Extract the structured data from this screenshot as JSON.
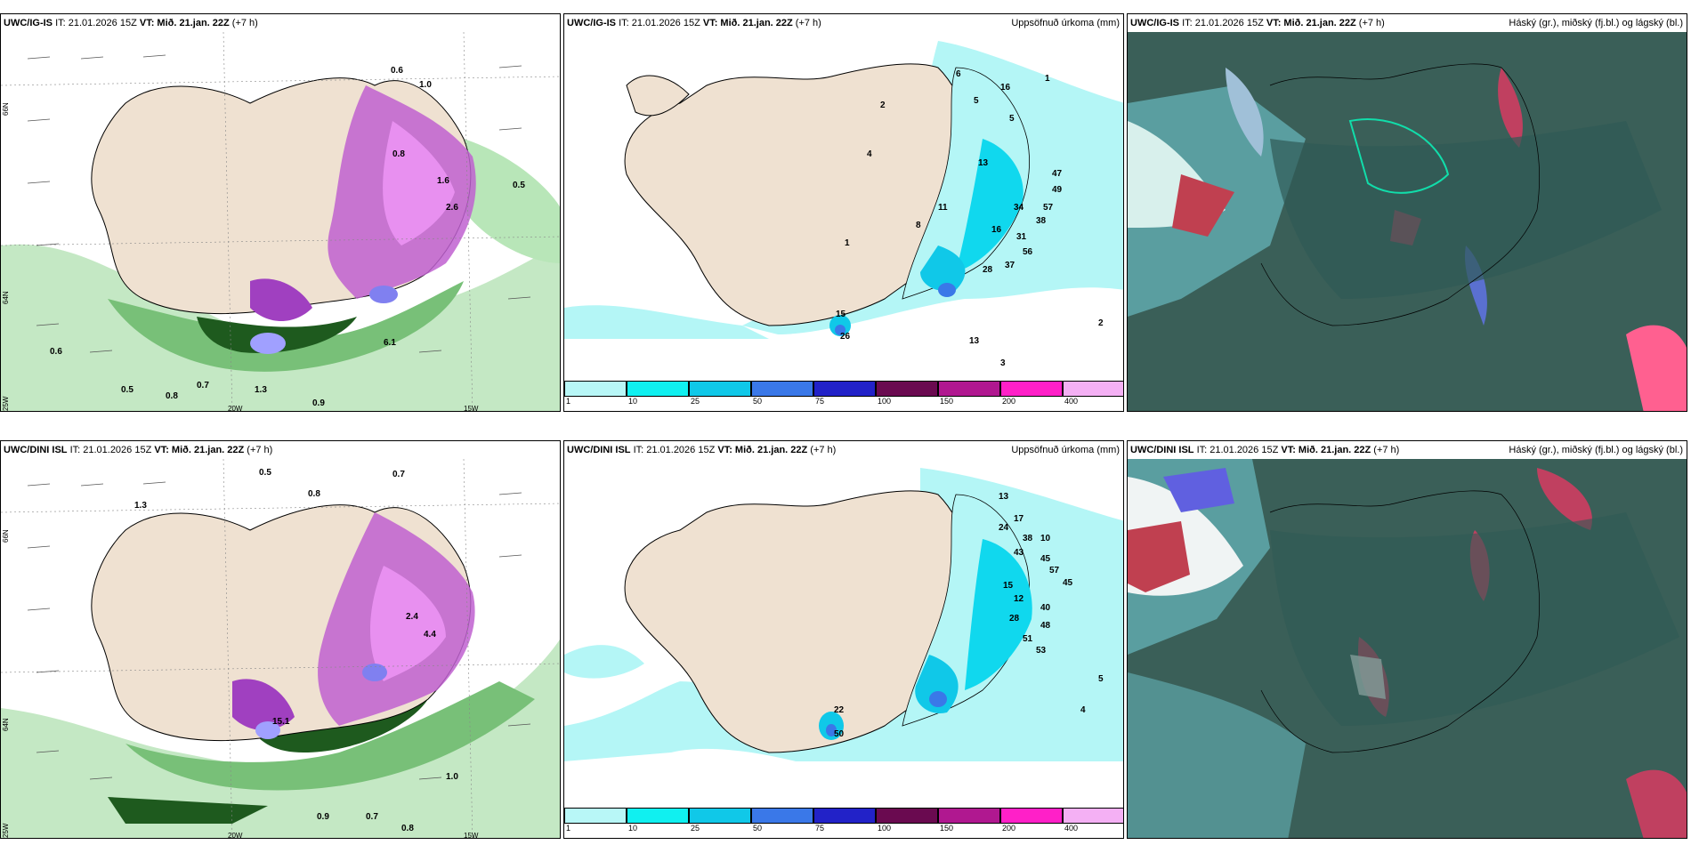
{
  "panels": [
    {
      "model": "UWC/IG-IS",
      "it": "IT: 21.01.2026 15Z",
      "vt_label": "VT:",
      "vt": "Mið. 21.jan. 22Z",
      "lead": "(+7 h)",
      "title": ""
    },
    {
      "model": "UWC/IG-IS",
      "it": "IT: 21.01.2026 15Z",
      "vt_label": "VT:",
      "vt": "Mið. 21.jan. 22Z",
      "lead": "(+7 h)",
      "title": "Uppsöfnuð úrkoma (mm)"
    },
    {
      "model": "UWC/IG-IS",
      "it": "IT: 21.01.2026 15Z",
      "vt_label": "VT:",
      "vt": "Mið. 21.jan. 22Z",
      "lead": "(+7 h)",
      "title": "Háský (gr.), miðský (fj.bl.) og lágský (bl.)"
    },
    {
      "model": "UWC/DINI ISL",
      "it": "IT: 21.01.2026 15Z",
      "vt_label": "VT:",
      "vt": "Mið. 21.jan. 22Z",
      "lead": "(+7 h)",
      "title": ""
    },
    {
      "model": "UWC/DINI ISL",
      "it": "IT: 21.01.2026 15Z",
      "vt_label": "VT:",
      "vt": "Mið. 21.jan. 22Z",
      "lead": "(+7 h)",
      "title": "Uppsöfnuð úrkoma (mm)"
    },
    {
      "model": "UWC/DINI ISL",
      "it": "IT: 21.01.2026 15Z",
      "vt_label": "VT:",
      "vt": "Mið. 21.jan. 22Z",
      "lead": "(+7 h)",
      "title": "Háský (gr.), miðský (fj.bl.) og lágský (bl.)"
    }
  ],
  "gridlabels": {
    "lat66": "66N",
    "lat64": "64N",
    "lon25": "25W",
    "lon20": "20W",
    "lon15": "15W"
  },
  "colorbar": {
    "ticks": [
      "1",
      "10",
      "25",
      "50",
      "75",
      "100",
      "150",
      "200",
      "400"
    ],
    "colors": [
      "#b8f7f7",
      "#10f0f0",
      "#10c8e8",
      "#3a78e8",
      "#2222c8",
      "#6a0a50",
      "#b01890",
      "#ff20c8",
      "#f4b0f4"
    ]
  },
  "precip_labels_top": [
    "16",
    "1",
    "6",
    "5",
    "2",
    "4",
    "5",
    "13",
    "47",
    "49",
    "34",
    "57",
    "38",
    "31",
    "56",
    "11",
    "8",
    "16",
    "28",
    "37",
    "26",
    "1",
    "13",
    "15",
    "3",
    "2"
  ],
  "precip_labels_bottom": [
    "13",
    "17",
    "24",
    "38",
    "10",
    "45",
    "43",
    "57",
    "45",
    "28",
    "40",
    "48",
    "51",
    "53",
    "15",
    "12",
    "22",
    "50",
    "5",
    "4"
  ],
  "wind_labels_top": [
    "0.6",
    "1.0",
    "0.8",
    "1.6",
    "2.6",
    "0.5",
    "6.1",
    "0.6",
    "0.9",
    "0.7",
    "1.3",
    "0.8",
    "0.5"
  ],
  "wind_labels_bottom": [
    "0.5",
    "0.8",
    "0.7",
    "2.4",
    "4.4",
    "1.0",
    "15.1",
    "0.9",
    "0.7",
    "0.8",
    "1.3"
  ]
}
